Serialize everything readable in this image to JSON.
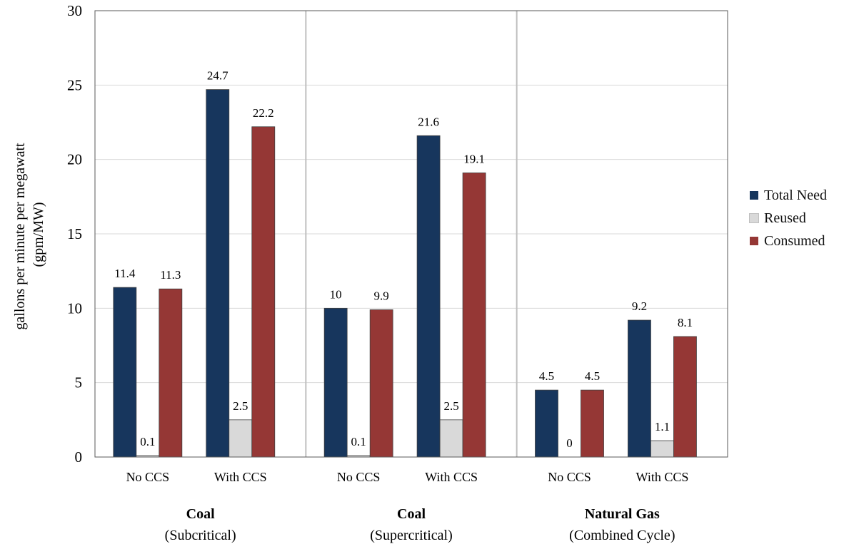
{
  "chart_data": {
    "type": "bar",
    "ylabel_line1": "gallons per minute per megawatt",
    "ylabel_line2": "(gpm/MW)",
    "ylim": [
      0,
      30
    ],
    "yticks": [
      0,
      5,
      10,
      15,
      20,
      25,
      30
    ],
    "grid": true,
    "legend_position": "right",
    "colors": {
      "Total Need": "#17365d",
      "Reused": "#d9d9d9",
      "Consumed": "#953735"
    },
    "series_names": [
      "Total Need",
      "Reused",
      "Consumed"
    ],
    "groups": [
      {
        "name": "Coal",
        "subtitle": "(Subcritical)",
        "categories": [
          {
            "label": "No CCS",
            "values": [
              11.4,
              0.1,
              11.3
            ]
          },
          {
            "label": "With CCS",
            "values": [
              24.7,
              2.5,
              22.2
            ]
          }
        ]
      },
      {
        "name": "Coal",
        "subtitle": "(Supercritical)",
        "categories": [
          {
            "label": "No CCS",
            "values": [
              10,
              0.1,
              9.9
            ]
          },
          {
            "label": "With CCS",
            "values": [
              21.6,
              2.5,
              19.1
            ]
          }
        ]
      },
      {
        "name": "Natural Gas",
        "subtitle": "(Combined Cycle)",
        "categories": [
          {
            "label": "No CCS",
            "values": [
              4.5,
              0,
              4.5
            ]
          },
          {
            "label": "With CCS",
            "values": [
              9.2,
              1.1,
              8.1
            ]
          }
        ]
      }
    ]
  }
}
